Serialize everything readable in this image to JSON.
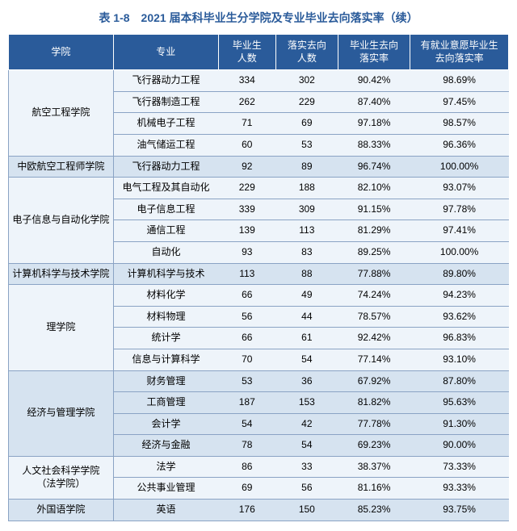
{
  "title": "表 1-8　2021 届本科毕业生分学院及专业毕业去向落实率（续）",
  "headers": {
    "college": "学院",
    "major": "专业",
    "graduates": "毕业生\n人数",
    "placed": "落实去向\n人数",
    "rate": "毕业生去向\n落实率",
    "empRate": "有就业意愿毕业生\n去向落实率"
  },
  "groups": [
    {
      "college": "航空工程学院",
      "stripe": "a",
      "rows": [
        {
          "major": "飞行器动力工程",
          "graduates": "334",
          "placed": "302",
          "rate": "90.42%",
          "empRate": "98.69%"
        },
        {
          "major": "飞行器制造工程",
          "graduates": "262",
          "placed": "229",
          "rate": "87.40%",
          "empRate": "97.45%"
        },
        {
          "major": "机械电子工程",
          "graduates": "71",
          "placed": "69",
          "rate": "97.18%",
          "empRate": "98.57%"
        },
        {
          "major": "油气储运工程",
          "graduates": "60",
          "placed": "53",
          "rate": "88.33%",
          "empRate": "96.36%"
        }
      ]
    },
    {
      "college": "中欧航空工程师学院",
      "stripe": "b",
      "rows": [
        {
          "major": "飞行器动力工程",
          "graduates": "92",
          "placed": "89",
          "rate": "96.74%",
          "empRate": "100.00%"
        }
      ]
    },
    {
      "college": "电子信息与自动化学院",
      "stripe": "a",
      "rows": [
        {
          "major": "电气工程及其自动化",
          "graduates": "229",
          "placed": "188",
          "rate": "82.10%",
          "empRate": "93.07%"
        },
        {
          "major": "电子信息工程",
          "graduates": "339",
          "placed": "309",
          "rate": "91.15%",
          "empRate": "97.78%"
        },
        {
          "major": "通信工程",
          "graduates": "139",
          "placed": "113",
          "rate": "81.29%",
          "empRate": "97.41%"
        },
        {
          "major": "自动化",
          "graduates": "93",
          "placed": "83",
          "rate": "89.25%",
          "empRate": "100.00%"
        }
      ]
    },
    {
      "college": "计算机科学与技术学院",
      "stripe": "b",
      "rows": [
        {
          "major": "计算机科学与技术",
          "graduates": "113",
          "placed": "88",
          "rate": "77.88%",
          "empRate": "89.80%"
        }
      ]
    },
    {
      "college": "理学院",
      "stripe": "a",
      "rows": [
        {
          "major": "材料化学",
          "graduates": "66",
          "placed": "49",
          "rate": "74.24%",
          "empRate": "94.23%"
        },
        {
          "major": "材料物理",
          "graduates": "56",
          "placed": "44",
          "rate": "78.57%",
          "empRate": "93.62%"
        },
        {
          "major": "统计学",
          "graduates": "66",
          "placed": "61",
          "rate": "92.42%",
          "empRate": "96.83%"
        },
        {
          "major": "信息与计算科学",
          "graduates": "70",
          "placed": "54",
          "rate": "77.14%",
          "empRate": "93.10%"
        }
      ]
    },
    {
      "college": "经济与管理学院",
      "stripe": "b",
      "rows": [
        {
          "major": "财务管理",
          "graduates": "53",
          "placed": "36",
          "rate": "67.92%",
          "empRate": "87.80%"
        },
        {
          "major": "工商管理",
          "graduates": "187",
          "placed": "153",
          "rate": "81.82%",
          "empRate": "95.63%"
        },
        {
          "major": "会计学",
          "graduates": "54",
          "placed": "42",
          "rate": "77.78%",
          "empRate": "91.30%"
        },
        {
          "major": "经济与金融",
          "graduates": "78",
          "placed": "54",
          "rate": "69.23%",
          "empRate": "90.00%"
        }
      ]
    },
    {
      "college": "人文社会科学学院\n（法学院）",
      "stripe": "a",
      "rows": [
        {
          "major": "法学",
          "graduates": "86",
          "placed": "33",
          "rate": "38.37%",
          "empRate": "73.33%"
        },
        {
          "major": "公共事业管理",
          "graduates": "69",
          "placed": "56",
          "rate": "81.16%",
          "empRate": "93.33%"
        }
      ]
    },
    {
      "college": "外国语学院",
      "stripe": "b",
      "rows": [
        {
          "major": "英语",
          "graduates": "176",
          "placed": "150",
          "rate": "85.23%",
          "empRate": "93.75%"
        }
      ]
    }
  ]
}
